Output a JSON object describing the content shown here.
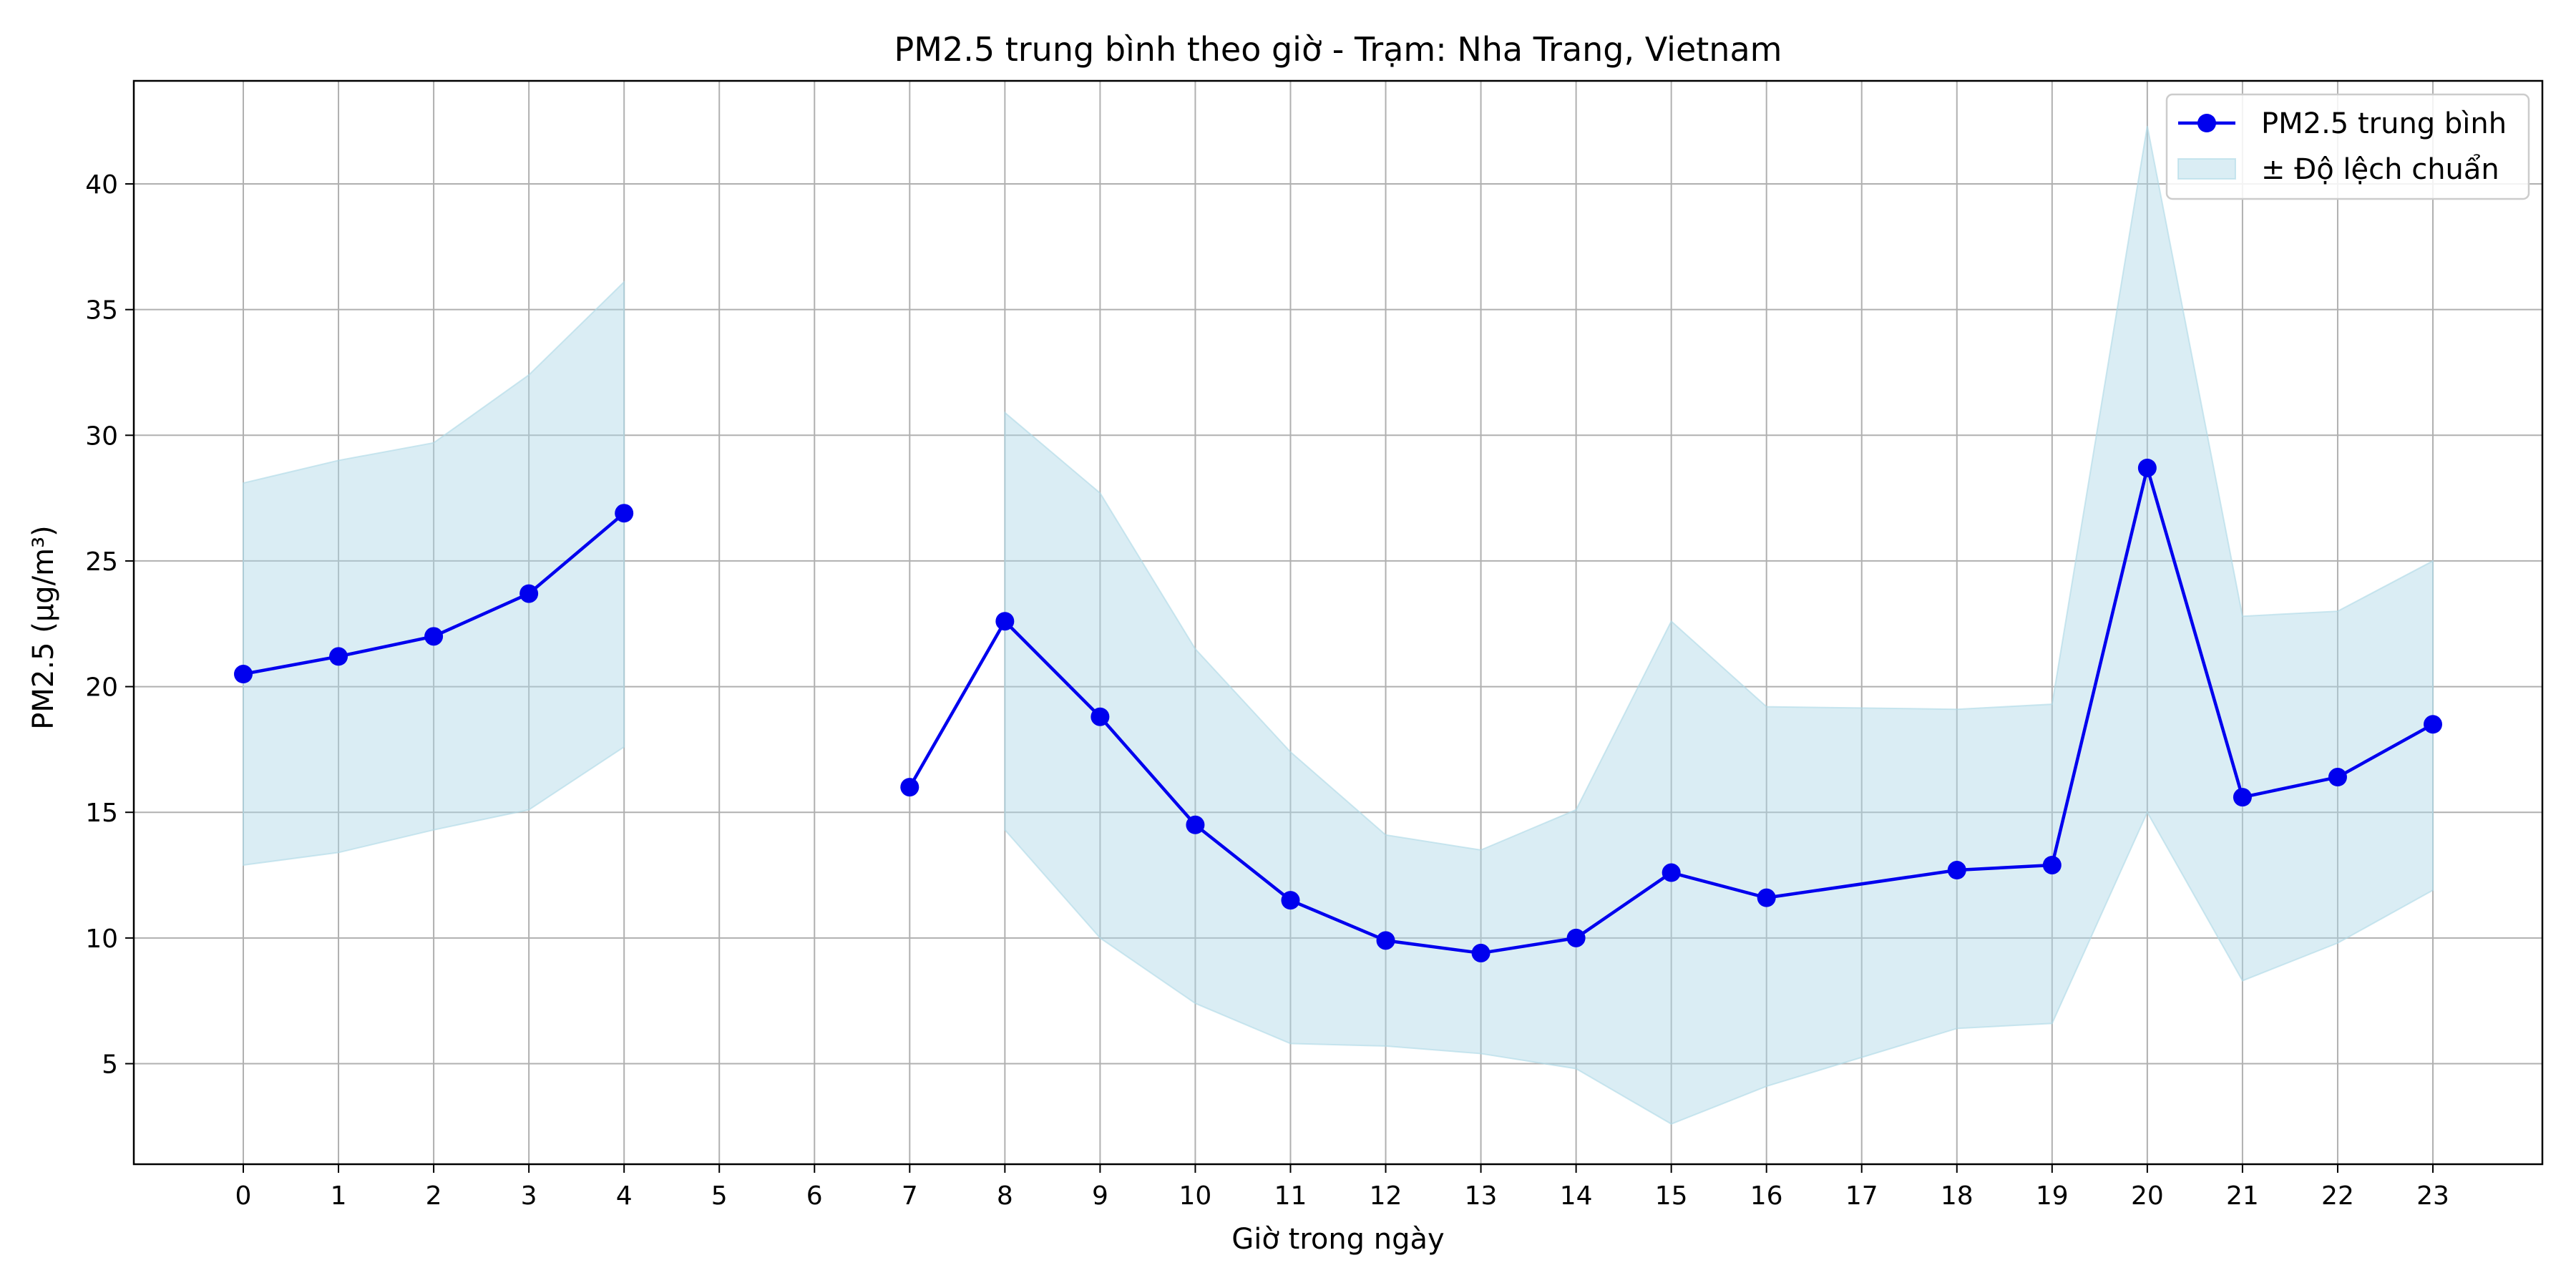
{
  "chart_data": {
    "type": "line",
    "title": "PM2.5 trung bình theo giờ - Trạm: Nha Trang, Vietnam",
    "xlabel": "Giờ trong ngày",
    "ylabel": "PM2.5 (µg/m³)",
    "xlim": [
      -1.15,
      24.15
    ],
    "ylim": [
      1.0,
      44.1
    ],
    "x_ticks": [
      0,
      1,
      2,
      3,
      4,
      5,
      6,
      7,
      8,
      9,
      10,
      11,
      12,
      13,
      14,
      15,
      16,
      17,
      18,
      19,
      20,
      21,
      22,
      23
    ],
    "y_ticks": [
      5,
      10,
      15,
      20,
      25,
      30,
      35,
      40
    ],
    "grid": true,
    "legend_position": "top-right",
    "series": [
      {
        "name": "PM2.5 trung bình",
        "kind": "line-markers",
        "color": "#0000ee",
        "segments": [
          [
            [
              0,
              20.5
            ],
            [
              1,
              21.2
            ],
            [
              2,
              22.0
            ],
            [
              3,
              23.7
            ],
            [
              4,
              26.9
            ]
          ],
          [
            [
              7,
              16.0
            ],
            [
              8,
              22.6
            ],
            [
              9,
              18.8
            ],
            [
              10,
              14.5
            ],
            [
              11,
              11.5
            ],
            [
              12,
              9.9
            ],
            [
              13,
              9.4
            ],
            [
              14,
              10.0
            ],
            [
              15,
              12.6
            ],
            [
              16,
              11.6
            ],
            [
              18,
              12.7
            ],
            [
              19,
              12.9
            ],
            [
              20,
              28.7
            ],
            [
              21,
              15.6
            ],
            [
              22,
              16.4
            ],
            [
              23,
              18.5
            ]
          ]
        ]
      },
      {
        "name": "± Độ lệch chuẩn",
        "kind": "band",
        "color": "#add8e6",
        "segments": [
          {
            "x": [
              0,
              1,
              2,
              3,
              4
            ],
            "upper": [
              28.1,
              29.0,
              29.7,
              32.4,
              36.1
            ],
            "lower": [
              12.9,
              13.4,
              14.3,
              15.1,
              17.6
            ]
          },
          {
            "x": [
              8,
              9,
              10,
              11,
              12,
              13,
              14,
              15,
              16,
              18,
              19,
              20,
              21,
              22,
              23
            ],
            "upper": [
              30.9,
              27.7,
              21.5,
              17.4,
              14.1,
              13.5,
              15.1,
              22.6,
              19.2,
              19.1,
              19.3,
              42.3,
              22.8,
              23.0,
              25.0
            ],
            "lower": [
              14.3,
              10.0,
              7.4,
              5.8,
              5.7,
              5.4,
              4.8,
              2.6,
              4.1,
              6.4,
              6.6,
              15.0,
              8.3,
              9.8,
              11.9
            ]
          }
        ]
      }
    ]
  }
}
